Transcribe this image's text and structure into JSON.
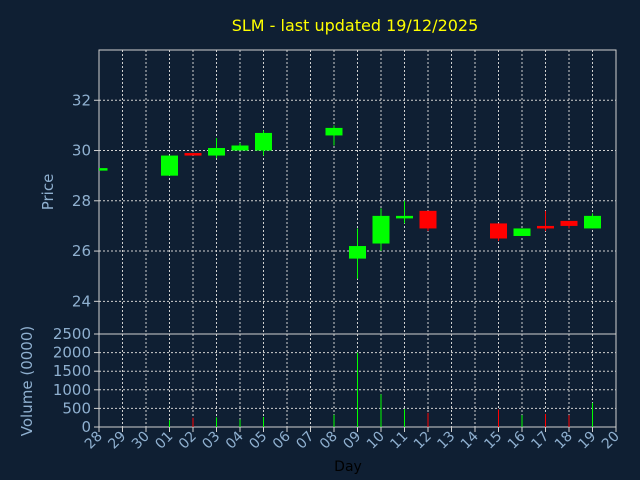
{
  "chart_data": {
    "type": "candlestick",
    "title": "SLM - last updated 19/12/2025",
    "xlabel": "Day",
    "price_axis": {
      "label": "Price",
      "ylim": [
        22.7,
        34.0
      ],
      "ticks": [
        24,
        26,
        28,
        30,
        32
      ]
    },
    "volume_axis": {
      "label": "Volume (0000)",
      "ylim": [
        0,
        2500
      ],
      "ticks": [
        0,
        500,
        1000,
        1500,
        2000,
        2500
      ]
    },
    "x_ticks": [
      "28",
      "29",
      "30",
      "01",
      "02",
      "03",
      "04",
      "05",
      "06",
      "07",
      "08",
      "09",
      "10",
      "11",
      "12",
      "13",
      "14",
      "15",
      "16",
      "17",
      "18",
      "19",
      "20"
    ],
    "colors": {
      "up": "#00ff00",
      "down": "#ff0000",
      "grid": "#d0d0d0",
      "axis": "#d0d0d0",
      "background": "#0f1f33"
    },
    "candles": [
      {
        "day": "28",
        "open": 29.3,
        "high": 29.3,
        "low": 29.3,
        "close": 29.3,
        "volume": 0
      },
      {
        "day": "01",
        "open": 29.0,
        "high": 29.8,
        "low": 29.0,
        "close": 29.8,
        "volume": 180
      },
      {
        "day": "02",
        "open": 29.9,
        "high": 29.9,
        "low": 29.8,
        "close": 29.8,
        "volume": 250
      },
      {
        "day": "03",
        "open": 29.8,
        "high": 30.5,
        "low": 29.7,
        "close": 30.1,
        "volume": 260
      },
      {
        "day": "04",
        "open": 30.0,
        "high": 30.3,
        "low": 30.0,
        "close": 30.2,
        "volume": 200
      },
      {
        "day": "05",
        "open": 30.0,
        "high": 30.8,
        "low": 29.8,
        "close": 30.7,
        "volume": 270
      },
      {
        "day": "08",
        "open": 30.6,
        "high": 31.0,
        "low": 30.2,
        "close": 30.9,
        "volume": 330
      },
      {
        "day": "09",
        "open": 25.7,
        "high": 26.9,
        "low": 24.9,
        "close": 26.2,
        "volume": 2000
      },
      {
        "day": "10",
        "open": 26.3,
        "high": 27.7,
        "low": 26.0,
        "close": 27.4,
        "volume": 880
      },
      {
        "day": "11",
        "open": 27.3,
        "high": 28.0,
        "low": 27.1,
        "close": 27.4,
        "volume": 480
      },
      {
        "day": "12",
        "open": 27.6,
        "high": 27.6,
        "low": 26.8,
        "close": 26.9,
        "volume": 380
      },
      {
        "day": "15",
        "open": 27.1,
        "high": 27.1,
        "low": 26.4,
        "close": 26.5,
        "volume": 470
      },
      {
        "day": "16",
        "open": 26.6,
        "high": 26.9,
        "low": 26.6,
        "close": 26.9,
        "volume": 320
      },
      {
        "day": "17",
        "open": 27.0,
        "high": 27.6,
        "low": 26.8,
        "close": 26.9,
        "volume": 350
      },
      {
        "day": "18",
        "open": 27.2,
        "high": 27.2,
        "low": 26.9,
        "close": 27.0,
        "volume": 320
      },
      {
        "day": "19",
        "open": 26.9,
        "high": 27.5,
        "low": 26.9,
        "close": 27.4,
        "volume": 650
      }
    ]
  }
}
